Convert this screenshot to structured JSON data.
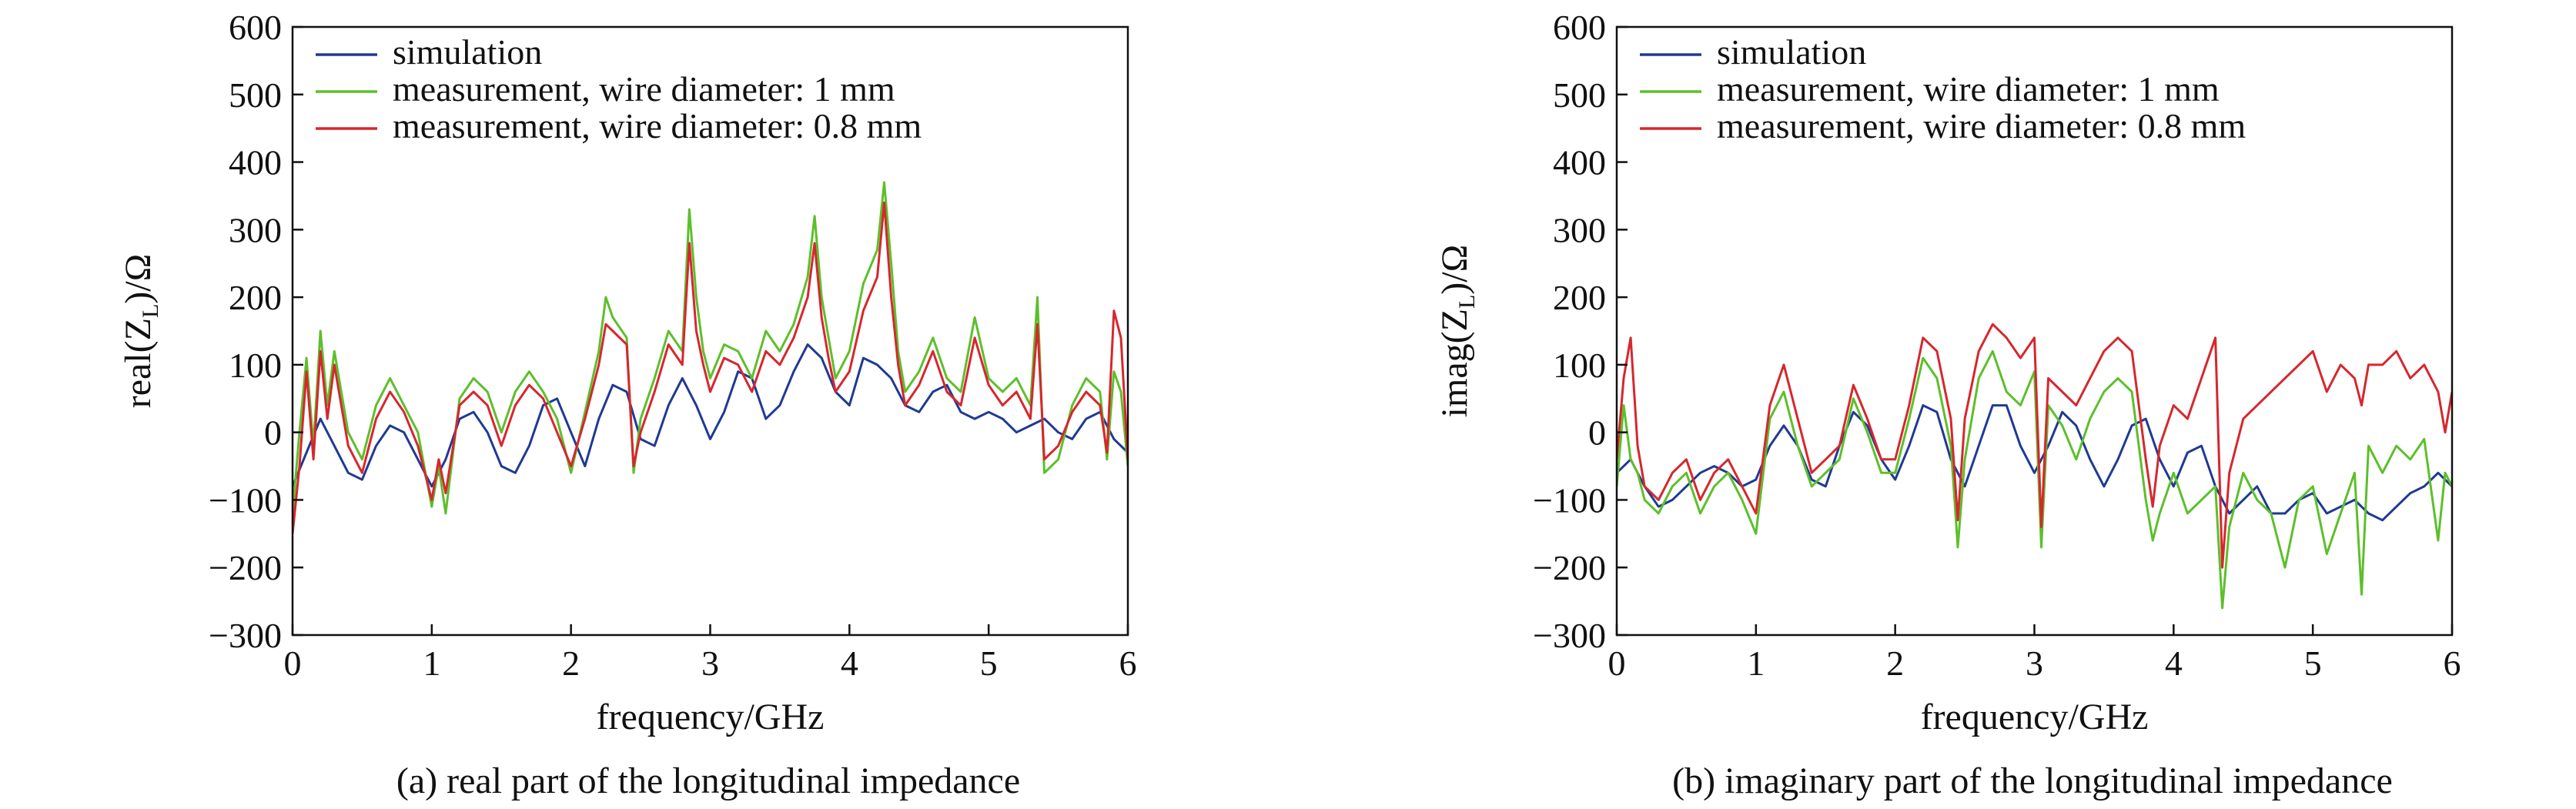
{
  "figure": {
    "panels": [
      {
        "id": "real",
        "caption": "(a) real part of the longitudinal impedance",
        "ylabel_prefix": "real(Z",
        "ylabel_sub": "L",
        "ylabel_suffix": ")/Ω",
        "xlabel": "frequency/GHz"
      },
      {
        "id": "imag",
        "caption": "(b) imaginary part of the longitudinal impedance",
        "ylabel_prefix": "imag(Z",
        "ylabel_sub": "L",
        "ylabel_suffix": ")/Ω",
        "xlabel": "frequency/GHz"
      }
    ]
  },
  "colors": {
    "simulation": "#1f3a93",
    "measurement_1mm": "#5dbf2b",
    "measurement_08mm": "#d6272e"
  },
  "chart_data": [
    {
      "type": "line",
      "title": "",
      "xlabel": "frequency/GHz",
      "ylabel": "real(ZL)/Ω",
      "xlim": [
        0,
        6
      ],
      "ylim": [
        -300,
        600
      ],
      "xticks": [
        0,
        1,
        2,
        3,
        4,
        5,
        6
      ],
      "yticks": [
        -300,
        -200,
        -100,
        0,
        100,
        200,
        300,
        400,
        500,
        600
      ],
      "legend_position": "top-left",
      "series": [
        {
          "name": "simulation",
          "color": "#1f3a93",
          "x": [
            0,
            0.1,
            0.2,
            0.3,
            0.4,
            0.5,
            0.6,
            0.7,
            0.8,
            0.9,
            1.0,
            1.1,
            1.2,
            1.3,
            1.4,
            1.5,
            1.6,
            1.7,
            1.8,
            1.9,
            2.0,
            2.1,
            2.2,
            2.3,
            2.4,
            2.5,
            2.6,
            2.7,
            2.8,
            2.9,
            3.0,
            3.1,
            3.2,
            3.3,
            3.4,
            3.5,
            3.6,
            3.7,
            3.8,
            3.9,
            4.0,
            4.1,
            4.2,
            4.3,
            4.4,
            4.5,
            4.6,
            4.7,
            4.8,
            4.9,
            5.0,
            5.1,
            5.2,
            5.3,
            5.4,
            5.5,
            5.6,
            5.7,
            5.8,
            5.9,
            6.0
          ],
          "y": [
            -80,
            -30,
            20,
            -20,
            -60,
            -70,
            -20,
            10,
            0,
            -40,
            -80,
            -40,
            20,
            30,
            0,
            -50,
            -60,
            -20,
            40,
            50,
            0,
            -50,
            20,
            70,
            60,
            -10,
            -20,
            40,
            80,
            40,
            -10,
            30,
            90,
            80,
            20,
            40,
            90,
            130,
            110,
            60,
            40,
            110,
            100,
            80,
            40,
            30,
            60,
            70,
            30,
            20,
            30,
            20,
            0,
            10,
            20,
            0,
            -10,
            20,
            30,
            -10,
            -30
          ]
        },
        {
          "name": "measurement, wire diameter: 1 mm",
          "color": "#5dbf2b",
          "x": [
            0,
            0.05,
            0.1,
            0.15,
            0.2,
            0.25,
            0.3,
            0.4,
            0.5,
            0.6,
            0.7,
            0.8,
            0.9,
            1.0,
            1.05,
            1.1,
            1.2,
            1.3,
            1.4,
            1.5,
            1.6,
            1.7,
            1.8,
            1.9,
            2.0,
            2.1,
            2.2,
            2.25,
            2.3,
            2.4,
            2.45,
            2.5,
            2.6,
            2.7,
            2.8,
            2.85,
            2.9,
            2.95,
            3.0,
            3.1,
            3.2,
            3.3,
            3.4,
            3.5,
            3.6,
            3.7,
            3.75,
            3.8,
            3.85,
            3.9,
            4.0,
            4.1,
            4.2,
            4.25,
            4.3,
            4.35,
            4.4,
            4.5,
            4.6,
            4.7,
            4.8,
            4.9,
            5.0,
            5.1,
            5.2,
            5.3,
            5.35,
            5.4,
            5.5,
            5.6,
            5.7,
            5.8,
            5.85,
            5.9,
            5.95,
            6.0
          ],
          "y": [
            -120,
            0,
            110,
            -20,
            150,
            40,
            120,
            0,
            -40,
            40,
            80,
            40,
            0,
            -110,
            -50,
            -120,
            50,
            80,
            60,
            0,
            60,
            90,
            60,
            20,
            -60,
            30,
            120,
            200,
            170,
            140,
            -60,
            20,
            80,
            150,
            120,
            330,
            200,
            120,
            80,
            130,
            120,
            80,
            150,
            120,
            160,
            230,
            320,
            200,
            140,
            80,
            120,
            220,
            270,
            370,
            250,
            120,
            60,
            90,
            140,
            80,
            60,
            170,
            80,
            60,
            80,
            40,
            200,
            -60,
            -40,
            40,
            80,
            60,
            -40,
            90,
            60,
            -50
          ]
        },
        {
          "name": "measurement, wire diameter: 0.8 mm",
          "color": "#d6272e",
          "x": [
            0,
            0.05,
            0.1,
            0.15,
            0.2,
            0.25,
            0.3,
            0.4,
            0.5,
            0.6,
            0.7,
            0.8,
            0.9,
            1.0,
            1.05,
            1.1,
            1.2,
            1.3,
            1.4,
            1.5,
            1.6,
            1.7,
            1.8,
            1.9,
            2.0,
            2.1,
            2.2,
            2.25,
            2.3,
            2.4,
            2.45,
            2.5,
            2.6,
            2.7,
            2.8,
            2.85,
            2.9,
            2.95,
            3.0,
            3.1,
            3.2,
            3.3,
            3.4,
            3.5,
            3.6,
            3.7,
            3.75,
            3.8,
            3.85,
            3.9,
            4.0,
            4.1,
            4.2,
            4.25,
            4.3,
            4.35,
            4.4,
            4.5,
            4.6,
            4.7,
            4.8,
            4.9,
            5.0,
            5.1,
            5.2,
            5.3,
            5.35,
            5.4,
            5.5,
            5.6,
            5.7,
            5.8,
            5.85,
            5.9,
            5.95,
            6.0
          ],
          "y": [
            -150,
            -50,
            90,
            -40,
            120,
            20,
            100,
            -20,
            -60,
            20,
            60,
            30,
            -20,
            -100,
            -40,
            -90,
            40,
            60,
            40,
            -20,
            40,
            70,
            50,
            0,
            -50,
            20,
            100,
            160,
            150,
            130,
            -50,
            0,
            60,
            130,
            100,
            280,
            150,
            100,
            60,
            110,
            100,
            60,
            120,
            100,
            140,
            200,
            280,
            170,
            110,
            60,
            90,
            180,
            230,
            340,
            200,
            100,
            40,
            70,
            120,
            60,
            40,
            140,
            70,
            40,
            60,
            20,
            160,
            -40,
            -20,
            30,
            60,
            40,
            -30,
            180,
            140,
            -40
          ]
        }
      ]
    },
    {
      "type": "line",
      "title": "",
      "xlabel": "frequency/GHz",
      "ylabel": "imag(ZL)/Ω",
      "xlim": [
        0,
        6
      ],
      "ylim": [
        -300,
        600
      ],
      "xticks": [
        0,
        1,
        2,
        3,
        4,
        5,
        6
      ],
      "yticks": [
        -300,
        -200,
        -100,
        0,
        100,
        200,
        300,
        400,
        500,
        600
      ],
      "legend_position": "top-left",
      "series": [
        {
          "name": "simulation",
          "color": "#1f3a93",
          "x": [
            0,
            0.1,
            0.2,
            0.3,
            0.4,
            0.5,
            0.6,
            0.7,
            0.8,
            0.9,
            1.0,
            1.1,
            1.2,
            1.3,
            1.4,
            1.5,
            1.6,
            1.7,
            1.8,
            1.9,
            2.0,
            2.1,
            2.2,
            2.3,
            2.4,
            2.5,
            2.6,
            2.7,
            2.8,
            2.9,
            3.0,
            3.1,
            3.2,
            3.3,
            3.4,
            3.5,
            3.6,
            3.7,
            3.8,
            3.9,
            4.0,
            4.1,
            4.2,
            4.3,
            4.4,
            4.5,
            4.6,
            4.7,
            4.8,
            4.9,
            5.0,
            5.1,
            5.2,
            5.3,
            5.4,
            5.5,
            5.6,
            5.7,
            5.8,
            5.9,
            6.0
          ],
          "y": [
            -60,
            -40,
            -80,
            -110,
            -100,
            -80,
            -60,
            -50,
            -60,
            -80,
            -70,
            -20,
            10,
            -20,
            -70,
            -80,
            -20,
            30,
            10,
            -40,
            -70,
            -20,
            40,
            30,
            -40,
            -80,
            -20,
            40,
            40,
            -20,
            -60,
            -20,
            30,
            10,
            -40,
            -80,
            -40,
            10,
            20,
            -40,
            -80,
            -30,
            -20,
            -80,
            -120,
            -100,
            -80,
            -120,
            -120,
            -100,
            -90,
            -120,
            -110,
            -100,
            -120,
            -130,
            -110,
            -90,
            -80,
            -60,
            -80
          ]
        },
        {
          "name": "measurement, wire diameter: 1 mm",
          "color": "#5dbf2b",
          "x": [
            0,
            0.05,
            0.1,
            0.15,
            0.2,
            0.3,
            0.4,
            0.5,
            0.6,
            0.7,
            0.8,
            0.9,
            1.0,
            1.1,
            1.2,
            1.3,
            1.4,
            1.5,
            1.6,
            1.7,
            1.8,
            1.9,
            2.0,
            2.1,
            2.2,
            2.3,
            2.4,
            2.45,
            2.5,
            2.6,
            2.7,
            2.8,
            2.9,
            3.0,
            3.05,
            3.1,
            3.2,
            3.3,
            3.4,
            3.5,
            3.6,
            3.7,
            3.8,
            3.85,
            3.9,
            4.0,
            4.1,
            4.2,
            4.3,
            4.35,
            4.4,
            4.5,
            4.6,
            4.7,
            4.8,
            4.9,
            5.0,
            5.1,
            5.2,
            5.3,
            5.35,
            5.4,
            5.5,
            5.6,
            5.7,
            5.8,
            5.9,
            5.95,
            6.0
          ],
          "y": [
            -80,
            40,
            -40,
            -60,
            -100,
            -120,
            -80,
            -60,
            -120,
            -80,
            -60,
            -100,
            -150,
            20,
            60,
            -20,
            -80,
            -60,
            -40,
            50,
            0,
            -60,
            -60,
            20,
            110,
            80,
            -20,
            -170,
            -40,
            80,
            120,
            60,
            40,
            90,
            -170,
            40,
            10,
            -40,
            20,
            60,
            80,
            60,
            -100,
            -160,
            -120,
            -60,
            -120,
            -100,
            -80,
            -260,
            -140,
            -60,
            -100,
            -120,
            -200,
            -100,
            -80,
            -180,
            -120,
            -60,
            -240,
            -20,
            -60,
            -20,
            -40,
            -10,
            -160,
            -60,
            -80
          ]
        },
        {
          "name": "measurement, wire diameter: 0.8 mm",
          "color": "#d6272e",
          "x": [
            0,
            0.05,
            0.1,
            0.15,
            0.2,
            0.3,
            0.4,
            0.5,
            0.6,
            0.7,
            0.8,
            0.9,
            1.0,
            1.1,
            1.2,
            1.3,
            1.4,
            1.5,
            1.6,
            1.7,
            1.8,
            1.9,
            2.0,
            2.1,
            2.2,
            2.3,
            2.4,
            2.45,
            2.5,
            2.6,
            2.7,
            2.8,
            2.9,
            3.0,
            3.05,
            3.1,
            3.2,
            3.3,
            3.4,
            3.5,
            3.6,
            3.7,
            3.8,
            3.85,
            3.9,
            4.0,
            4.1,
            4.2,
            4.3,
            4.35,
            4.4,
            4.5,
            4.6,
            4.7,
            4.8,
            4.9,
            5.0,
            5.1,
            5.2,
            5.3,
            5.35,
            5.4,
            5.5,
            5.6,
            5.7,
            5.8,
            5.9,
            5.95,
            6.0
          ],
          "y": [
            -40,
            80,
            140,
            -20,
            -80,
            -100,
            -60,
            -40,
            -100,
            -60,
            -40,
            -80,
            -120,
            40,
            100,
            20,
            -60,
            -40,
            -20,
            70,
            20,
            -40,
            -40,
            40,
            140,
            120,
            20,
            -130,
            20,
            120,
            160,
            140,
            110,
            140,
            -140,
            80,
            60,
            40,
            80,
            120,
            140,
            120,
            -40,
            -110,
            -20,
            40,
            20,
            80,
            140,
            -200,
            -60,
            20,
            40,
            60,
            80,
            100,
            120,
            60,
            100,
            80,
            40,
            100,
            100,
            120,
            80,
            100,
            60,
            0,
            60
          ]
        }
      ]
    }
  ]
}
